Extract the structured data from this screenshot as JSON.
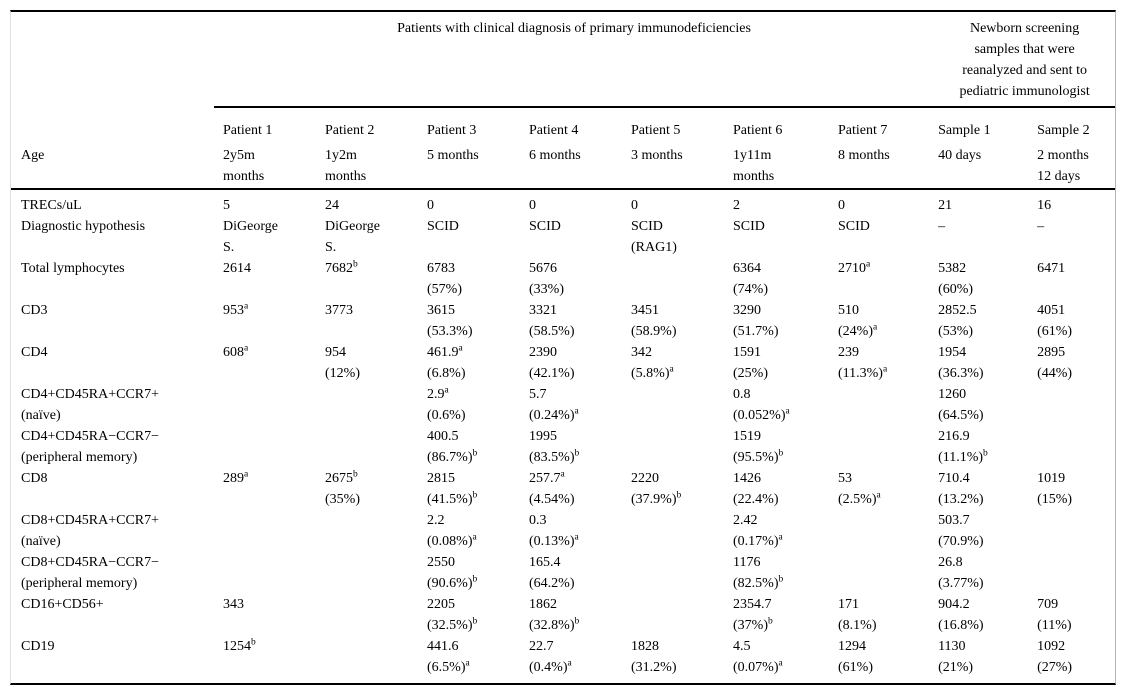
{
  "table": {
    "group_headers": {
      "patients": "Patients with clinical diagnosis of primary immunodeficiencies",
      "newborn": "Newborn screening\nsamples that were\nreanalyzed and sent to\npediatric immunologist"
    },
    "columns": [
      "Patient 1",
      "Patient 2",
      "Patient 3",
      "Patient 4",
      "Patient 5",
      "Patient 6",
      "Patient 7",
      "Sample 1",
      "Sample 2"
    ],
    "age_label": "Age",
    "ages": [
      "2y5m\nmonths",
      "1y2m\nmonths",
      "5 months",
      "6 months",
      "3 months",
      "1y11m\nmonths",
      "8 months",
      "40 days",
      "2 months\n12 days"
    ],
    "rows": [
      {
        "label": "TRECs/uL",
        "cells": [
          "5",
          "24",
          "0",
          "0",
          "0",
          "2",
          "0",
          "21",
          "16"
        ]
      },
      {
        "label": "Diagnostic hypothesis",
        "cells": [
          "DiGeorge\nS.",
          "DiGeorge\nS.",
          "SCID",
          "SCID",
          "SCID\n(RAG1)",
          "SCID",
          "SCID",
          "–",
          "–"
        ]
      },
      {
        "label": "Total lymphocytes",
        "cells": [
          "2614",
          "7682^b",
          "6783\n(57%)",
          "5676\n(33%)",
          "",
          "6364\n(74%)",
          "2710^a",
          "5382\n(60%)",
          "6471"
        ]
      },
      {
        "label": "CD3",
        "cells": [
          "953^a",
          "3773",
          "3615\n(53.3%)",
          "3321\n(58.5%)",
          "3451\n(58.9%)",
          "3290\n(51.7%)",
          "510\n(24%)^a",
          "2852.5\n(53%)",
          "4051\n(61%)"
        ]
      },
      {
        "label": "CD4",
        "cells": [
          "608^a",
          "954\n(12%)",
          "461.9^a\n(6.8%)",
          "2390\n(42.1%)",
          "342\n(5.8%)^a",
          "1591\n(25%)",
          "239\n(11.3%)^a",
          "1954\n(36.3%)",
          "2895\n(44%)"
        ]
      },
      {
        "label": "CD4+CD45RA+CCR7+\n(naïve)",
        "cells": [
          "",
          "",
          "2.9^a\n(0.6%)",
          "5.7\n(0.24%)^a",
          "",
          "0.8\n(0.052%)^a",
          "",
          "1260\n(64.5%)",
          ""
        ]
      },
      {
        "label": "CD4+CD45RA−CCR7−\n(peripheral memory)",
        "cells": [
          "",
          "",
          "400.5\n(86.7%)^b",
          "1995\n(83.5%)^b",
          "",
          "1519\n(95.5%)^b",
          "",
          "216.9\n(11.1%)^b",
          ""
        ]
      },
      {
        "label": "CD8",
        "cells": [
          "289^a",
          "2675^b\n(35%)",
          "2815\n(41.5%)^b",
          "257.7^a\n(4.54%)",
          "2220\n(37.9%)^b",
          "1426\n(22.4%)",
          "53\n(2.5%)^a",
          "710.4\n(13.2%)",
          "1019\n(15%)"
        ]
      },
      {
        "label": "CD8+CD45RA+CCR7+\n(naïve)",
        "cells": [
          "",
          "",
          "2.2\n(0.08%)^a",
          "0.3\n(0.13%)^a",
          "",
          "2.42\n(0.17%)^a",
          "",
          "503.7\n(70.9%)",
          ""
        ]
      },
      {
        "label": "CD8+CD45RA−CCR7−\n(peripheral memory)",
        "cells": [
          "",
          "",
          "2550\n(90.6%)^b",
          "165.4\n(64.2%)",
          "",
          "1176\n(82.5%)^b",
          "",
          "26.8\n(3.77%)",
          ""
        ]
      },
      {
        "label": "CD16+CD56+",
        "cells": [
          "343",
          "",
          "2205\n(32.5%)^b",
          "1862\n(32.8%)^b",
          "",
          "2354.7\n(37%)^b",
          "171\n(8.1%)",
          "904.2\n(16.8%)",
          "709\n(11%)"
        ]
      },
      {
        "label": "CD19",
        "cells": [
          "1254^b",
          "",
          "441.6\n(6.5%)^a",
          "22.7\n(0.4%)^a",
          "1828\n(31.2%)",
          "4.5\n(0.07%)^a",
          "1294\n(61%)",
          "1130\n(21%)",
          "1092\n(27%)"
        ]
      }
    ]
  }
}
